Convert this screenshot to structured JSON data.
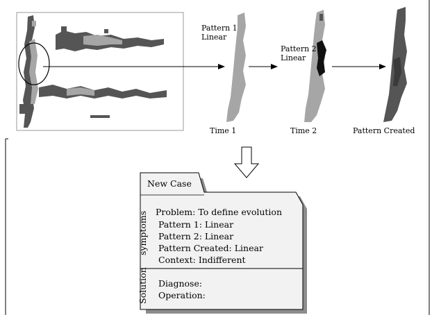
{
  "labels": {
    "pattern1_line1": "Pattern 1",
    "pattern1_line2": "Linear",
    "pattern2_line1": "Pattern 2",
    "pattern2_line2": "Linear",
    "time1": "Time 1",
    "time2": "Time 2",
    "pattern_created": "Pattern Created"
  },
  "card": {
    "tab": "New Case",
    "symptoms_heading": "symptoms",
    "solution_heading": "Solution",
    "symptoms": [
      "Problem: To define evolution",
      "Pattern 1: Linear",
      "Pattern 2: Linear",
      "Pattern Created: Linear",
      "Context: Indifferent"
    ],
    "solution": [
      "Diagnose:",
      "Operation:"
    ]
  },
  "colors": {
    "light_gray": "#a6a6a6",
    "dark_gray": "#555555",
    "black": "#111111",
    "card_fill": "#f2f2f2",
    "card_shadow": "#8c8c8c"
  }
}
